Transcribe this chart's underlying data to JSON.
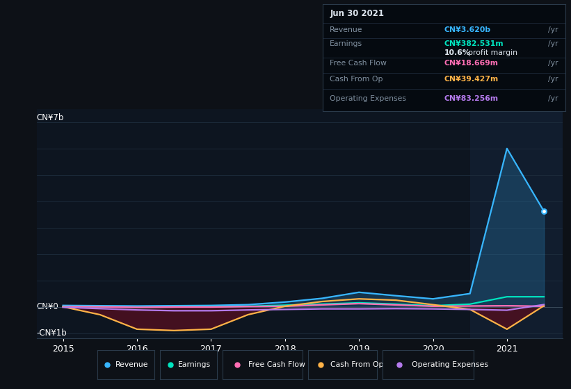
{
  "bg_color": "#0d1117",
  "plot_bg_color": "#0d1520",
  "highlight_bg_color": "#111d2e",
  "grid_color": "#1e2d3d",
  "axis_color": "#2a3a4a",
  "ylabel_top": "CN¥7b",
  "ylabel_zero": "CN¥0",
  "ylabel_bottom": "-CN¥1b",
  "ylim": [
    -1200000000.0,
    7500000000.0
  ],
  "xlim_left": 2014.65,
  "xlim_right": 2021.75,
  "years": [
    2015.0,
    2015.5,
    2016.0,
    2016.5,
    2017.0,
    2017.5,
    2018.0,
    2018.5,
    2019.0,
    2019.5,
    2020.0,
    2020.5,
    2021.0,
    2021.5
  ],
  "revenue": [
    50000000.0,
    40000000.0,
    30000000.0,
    40000000.0,
    50000000.0,
    80000000.0,
    180000000.0,
    320000000.0,
    550000000.0,
    420000000.0,
    300000000.0,
    500000000.0,
    6000000000.0,
    3620000000.0
  ],
  "earnings": [
    10000000.0,
    5000000.0,
    -20000000.0,
    -10000000.0,
    5000000.0,
    20000000.0,
    60000000.0,
    100000000.0,
    150000000.0,
    100000000.0,
    40000000.0,
    100000000.0,
    380000000.0,
    380000000.0
  ],
  "free_cash_flow": [
    5000000.0,
    0.0,
    -20000000.0,
    -10000000.0,
    -10000000.0,
    10000000.0,
    20000000.0,
    70000000.0,
    120000000.0,
    70000000.0,
    20000000.0,
    30000000.0,
    40000000.0,
    19000000.0
  ],
  "cash_from_op": [
    0.0,
    -300000000.0,
    -850000000.0,
    -900000000.0,
    -850000000.0,
    -300000000.0,
    20000000.0,
    200000000.0,
    300000000.0,
    250000000.0,
    80000000.0,
    -100000000.0,
    -850000000.0,
    39000000.0
  ],
  "operating_expenses": [
    -20000000.0,
    -70000000.0,
    -120000000.0,
    -150000000.0,
    -150000000.0,
    -120000000.0,
    -100000000.0,
    -80000000.0,
    -80000000.0,
    -70000000.0,
    -80000000.0,
    -100000000.0,
    -130000000.0,
    83000000.0
  ],
  "revenue_color": "#38b6ff",
  "earnings_color": "#00e5c0",
  "free_cash_flow_color": "#ff6eb4",
  "cash_from_op_color": "#ffb347",
  "operating_expenses_color": "#b57bee",
  "tooltip_bg": "#050a10",
  "tooltip_border": "#2a3a4a",
  "tooltip_date": "Jun 30 2021",
  "tooltip_revenue_val": "CN¥3.620b",
  "tooltip_earnings_val": "CN¥382.531m",
  "tooltip_earnings_pct": "10.6%",
  "tooltip_fcf_val": "CN¥18.669m",
  "tooltip_cashop_val": "CN¥39.427m",
  "tooltip_opex_val": "CN¥83.256m",
  "legend_items": [
    "Revenue",
    "Earnings",
    "Free Cash Flow",
    "Cash From Op",
    "Operating Expenses"
  ],
  "highlight_x_start": 2020.5,
  "highlight_x_end": 2021.75
}
